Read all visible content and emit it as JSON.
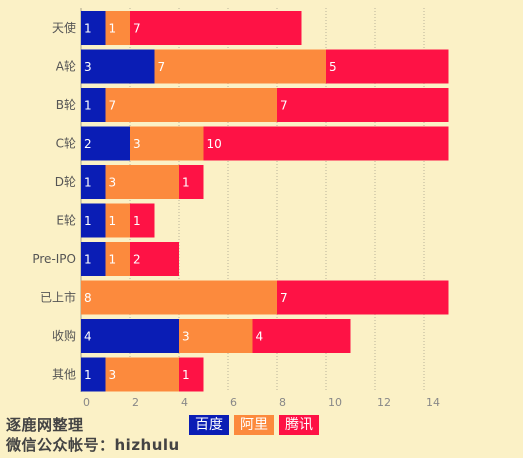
{
  "chart_data": {
    "type": "bar",
    "orientation": "horizontal",
    "stacked": true,
    "categories": [
      "天使",
      "A轮",
      "B轮",
      "C轮",
      "D轮",
      "E轮",
      "Pre-IPO",
      "已上市",
      "收购",
      "其他"
    ],
    "series": [
      {
        "name": "百度",
        "color": "#0a1db5",
        "values": [
          1,
          3,
          1,
          2,
          1,
          1,
          1,
          0,
          4,
          1
        ]
      },
      {
        "name": "阿里",
        "color": "#fc8a3d",
        "values": [
          1,
          7,
          7,
          3,
          3,
          1,
          1,
          8,
          3,
          3
        ]
      },
      {
        "name": "腾讯",
        "color": "#fe1245",
        "values": [
          7,
          5,
          7,
          10,
          1,
          1,
          2,
          7,
          4,
          1
        ]
      }
    ],
    "x_ticks": [
      0,
      2,
      4,
      6,
      8,
      10,
      12,
      14
    ],
    "xlim": [
      0,
      15
    ],
    "grid": true,
    "legend_position": "bottom"
  },
  "watermark": {
    "line1": "逐鹿网整理",
    "line2": "微信公众帐号：hizhulu"
  }
}
